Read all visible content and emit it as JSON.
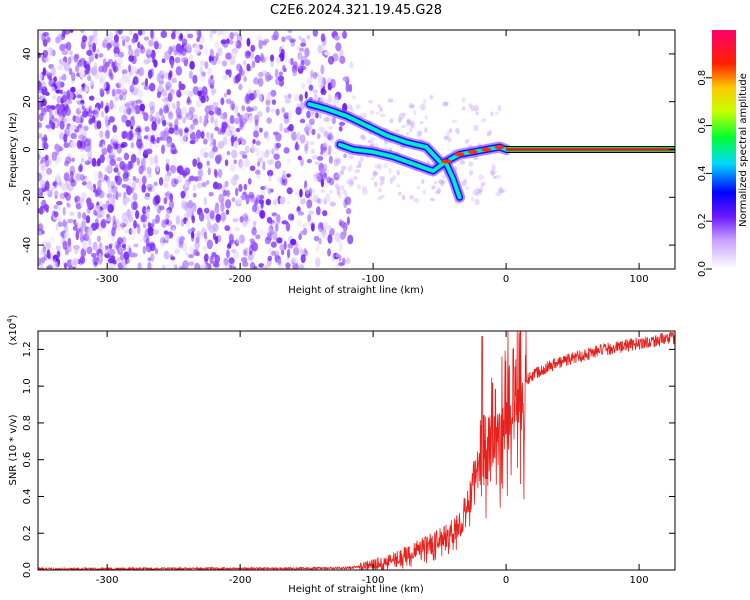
{
  "figure": {
    "title": "C2E6.2024.321.19.45.G28"
  },
  "chart_data": [
    {
      "type": "heatmap",
      "xlabel": "Height of straight line (km)",
      "ylabel": "Frequency (Hz)",
      "xlim": [
        -352,
        127
      ],
      "ylim": [
        -50,
        50
      ],
      "xticks": [
        -300,
        -200,
        -100,
        0,
        100
      ],
      "yticks": [
        -40,
        -20,
        0,
        20,
        40
      ],
      "colorbar": {
        "label": "Normalized spectral amplitude",
        "range": [
          0,
          1
        ],
        "ticks": [
          0.0,
          0.2,
          0.4,
          0.6,
          0.8
        ]
      },
      "features": [
        {
          "segment": "noise",
          "x_range": [
            -352,
            -115
          ],
          "freq_range": [
            -50,
            50
          ]
        },
        {
          "segment": "upper_arc",
          "points": [
            [
              -148,
              19
            ],
            [
              -135,
              17
            ],
            [
              -120,
              14
            ],
            [
              -105,
              10
            ],
            [
              -90,
              6
            ],
            [
              -75,
              3
            ],
            [
              -60,
              1
            ],
            [
              -50,
              -5
            ]
          ]
        },
        {
          "segment": "lower_arc",
          "points": [
            [
              -125,
              2
            ],
            [
              -115,
              0
            ],
            [
              -100,
              -1
            ],
            [
              -85,
              -3
            ],
            [
              -70,
              -6
            ],
            [
              -55,
              -9
            ],
            [
              -45,
              -5
            ]
          ]
        },
        {
          "segment": "tail",
          "points": [
            [
              -45,
              -6
            ],
            [
              -40,
              -12
            ],
            [
              -35,
              -20
            ]
          ]
        },
        {
          "segment": "converge",
          "points": [
            [
              -42,
              -4
            ],
            [
              -35,
              -2
            ],
            [
              -25,
              -1
            ],
            [
              -15,
              0
            ],
            [
              -5,
              1
            ],
            [
              0,
              0
            ]
          ]
        },
        {
          "segment": "carrier",
          "x_range": [
            0,
            127
          ],
          "freq": 0
        }
      ]
    },
    {
      "type": "line",
      "xlabel": "Height of straight line (km)",
      "ylabel": "SNR (10 * v/v)",
      "multiplier": "(x10^4)",
      "xlim": [
        -352,
        127
      ],
      "ylim": [
        0,
        1.3
      ],
      "xticks": [
        -300,
        -200,
        -100,
        0,
        100
      ],
      "yticks": [
        0.0,
        0.2,
        0.4,
        0.6,
        0.8,
        1.0,
        1.2
      ],
      "envelope_x": [
        -352,
        -150,
        -120,
        -100,
        -80,
        -60,
        -40,
        -30,
        -22,
        -20,
        -15,
        -10,
        -5,
        0,
        10,
        20,
        30,
        50,
        70,
        100,
        127
      ],
      "envelope_y": [
        0.005,
        0.008,
        0.01,
        0.03,
        0.07,
        0.13,
        0.2,
        0.32,
        0.5,
        0.62,
        0.7,
        0.77,
        0.86,
        0.93,
        1.0,
        1.06,
        1.1,
        1.15,
        1.19,
        1.23,
        1.26
      ],
      "spike": {
        "x": -18,
        "y": 1.27
      }
    }
  ]
}
